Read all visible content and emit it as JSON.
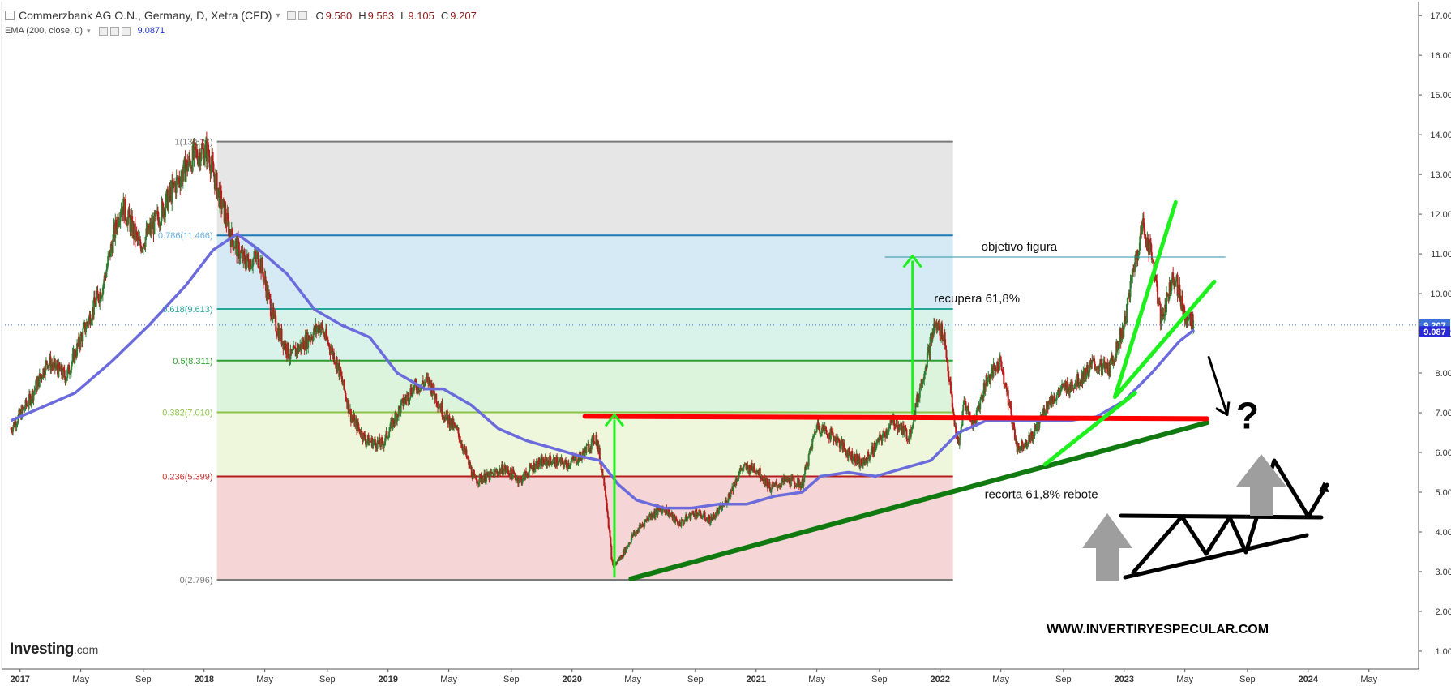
{
  "header": {
    "title": "Commerzbank AG O.N., Germany, D, Xetra (CFD)",
    "open_label": "O",
    "open": "9.580",
    "high_label": "H",
    "high": "9.583",
    "low_label": "L",
    "low": "9.105",
    "close_label": "C",
    "close": "9.207"
  },
  "indicator": {
    "label": "EMA (200, close, 0)",
    "value": "9.0871"
  },
  "logo": {
    "name": "Investing",
    "suffix": ".com"
  },
  "watermark": "WWW.INVERTIRYESPECULAR.COM",
  "colors": {
    "ema_line": "#6b6bdc",
    "candle_up": "#2e7d32",
    "candle_down": "#b71c1c",
    "last_price_tag": "#3a6fd8",
    "ema_tag": "#2a2ad8",
    "drawing_green": "#1ef01e",
    "drawing_dark_green": "#107a10",
    "drawing_red": "#ff0000"
  },
  "chart_data": {
    "type": "line",
    "y_axis": {
      "side": "right",
      "ticks": [
        1.0,
        2.0,
        3.0,
        4.0,
        5.0,
        6.0,
        7.0,
        8.0,
        9.0,
        10.0,
        11.0,
        12.0,
        13.0,
        14.0,
        15.0,
        16.0,
        17.0
      ],
      "tick_labels": [
        "1.000",
        "2.000",
        "3.000",
        "4.000",
        "5.000",
        "6.000",
        "7.000",
        "8.000",
        "9.000",
        "10.000",
        "11.000",
        "12.000",
        "13.000",
        "14.000",
        "15.000",
        "16.000",
        "17.000"
      ],
      "range": [
        0.55,
        17.35
      ]
    },
    "x_axis": {
      "range": [
        2016.9,
        2024.6
      ],
      "ticks": [
        2017.0,
        2017.33,
        2017.67,
        2018.0,
        2018.33,
        2018.67,
        2019.0,
        2019.33,
        2019.67,
        2020.0,
        2020.33,
        2020.67,
        2021.0,
        2021.33,
        2021.67,
        2022.0,
        2022.33,
        2022.67,
        2023.0,
        2023.33,
        2023.67,
        2024.0,
        2024.33
      ],
      "tick_labels": [
        "2017",
        "May",
        "Sep",
        "2018",
        "May",
        "Sep",
        "2019",
        "May",
        "Sep",
        "2020",
        "May",
        "Sep",
        "2021",
        "May",
        "Sep",
        "2022",
        "May",
        "Sep",
        "2023",
        "May",
        "Sep",
        "2024",
        "May"
      ],
      "bold_labels": [
        "2017",
        "2018",
        "2019",
        "2020",
        "2021",
        "2022",
        "2023",
        "2024"
      ]
    },
    "last_price": {
      "value": 9.207,
      "label": "9.207"
    },
    "ema_last": {
      "value": 9.087,
      "label": "9.087"
    },
    "price_series": {
      "name": "Commerzbank AG O.N.",
      "x": [
        2016.95,
        2017.05,
        2017.15,
        2017.25,
        2017.35,
        2017.45,
        2017.55,
        2017.65,
        2017.75,
        2017.85,
        2017.95,
        2018.02,
        2018.08,
        2018.15,
        2018.22,
        2018.3,
        2018.38,
        2018.47,
        2018.55,
        2018.63,
        2018.72,
        2018.8,
        2018.88,
        2018.97,
        2019.05,
        2019.13,
        2019.22,
        2019.3,
        2019.38,
        2019.47,
        2019.55,
        2019.63,
        2019.72,
        2019.8,
        2019.88,
        2019.97,
        2020.05,
        2020.13,
        2020.18,
        2020.22,
        2020.27,
        2020.33,
        2020.42,
        2020.5,
        2020.58,
        2020.67,
        2020.75,
        2020.83,
        2020.92,
        2021.0,
        2021.08,
        2021.17,
        2021.25,
        2021.33,
        2021.42,
        2021.5,
        2021.58,
        2021.67,
        2021.75,
        2021.83,
        2021.9,
        2021.97,
        2022.02,
        2022.07,
        2022.1,
        2022.13,
        2022.18,
        2022.25,
        2022.33,
        2022.42,
        2022.5,
        2022.58,
        2022.67,
        2022.75,
        2022.83,
        2022.92,
        2023.0,
        2023.05,
        2023.1,
        2023.15,
        2023.2,
        2023.27,
        2023.33,
        2023.38
      ],
      "close": [
        6.6,
        7.3,
        8.3,
        7.9,
        9.1,
        10.2,
        12.3,
        11.2,
        11.9,
        12.8,
        13.5,
        13.6,
        12.5,
        11.4,
        10.8,
        10.9,
        9.3,
        8.4,
        8.8,
        9.2,
        8.3,
        6.9,
        6.3,
        6.2,
        7.0,
        7.6,
        7.8,
        7.0,
        6.5,
        5.3,
        5.4,
        5.6,
        5.3,
        5.7,
        5.8,
        5.7,
        5.9,
        6.4,
        5.1,
        3.1,
        3.4,
        3.9,
        4.4,
        4.6,
        4.2,
        4.5,
        4.3,
        4.7,
        5.6,
        5.6,
        5.1,
        5.3,
        5.2,
        6.7,
        6.4,
        6.0,
        5.7,
        6.3,
        6.8,
        6.4,
        7.8,
        9.2,
        9.0,
        7.0,
        6.1,
        7.3,
        6.7,
        7.8,
        8.3,
        6.1,
        6.4,
        7.2,
        7.6,
        7.8,
        8.2,
        8.1,
        9.2,
        10.6,
        11.7,
        11.0,
        9.3,
        10.5,
        9.5,
        9.207
      ]
    },
    "ema_series": {
      "name": "EMA (200, close, 0)",
      "x": [
        2016.95,
        2017.1,
        2017.3,
        2017.5,
        2017.7,
        2017.9,
        2018.05,
        2018.18,
        2018.3,
        2018.45,
        2018.6,
        2018.75,
        2018.9,
        2019.05,
        2019.2,
        2019.3,
        2019.45,
        2019.6,
        2019.75,
        2019.9,
        2020.05,
        2020.15,
        2020.25,
        2020.35,
        2020.5,
        2020.65,
        2020.8,
        2020.95,
        2021.1,
        2021.25,
        2021.35,
        2021.5,
        2021.65,
        2021.8,
        2021.95,
        2022.1,
        2022.25,
        2022.4,
        2022.55,
        2022.7,
        2022.85,
        2023.0,
        2023.15,
        2023.3,
        2023.38
      ],
      "values": [
        6.8,
        7.1,
        7.5,
        8.3,
        9.2,
        10.2,
        11.1,
        11.5,
        11.1,
        10.5,
        9.6,
        9.2,
        8.9,
        8.0,
        7.6,
        7.6,
        7.2,
        6.6,
        6.3,
        6.1,
        5.9,
        5.8,
        5.2,
        4.8,
        4.6,
        4.6,
        4.7,
        4.7,
        4.9,
        5.0,
        5.4,
        5.5,
        5.4,
        5.6,
        5.8,
        6.5,
        6.8,
        6.8,
        6.8,
        6.8,
        6.9,
        7.3,
        8.0,
        8.8,
        9.087
      ]
    },
    "fibonacci": {
      "x_start": 2018.07,
      "x_end": 2022.07,
      "levels": [
        {
          "ratio": "1",
          "price": 13.827,
          "label": "1(13.827)",
          "line_color": "#7a7a7a",
          "label_color": "#7a7a7a",
          "fill_to_next": "#e6e6e6"
        },
        {
          "ratio": "0.786",
          "price": 11.466,
          "label": "0.786(11.466)",
          "line_color": "#1f77b4",
          "label_color": "#6ab0de",
          "fill_to_next": "#d5eaf5"
        },
        {
          "ratio": "0.618",
          "price": 9.613,
          "label": "0.618(9.613)",
          "line_color": "#26a69a",
          "label_color": "#26a69a",
          "fill_to_next": "#d9f3ea"
        },
        {
          "ratio": "0.5",
          "price": 8.311,
          "label": "0.5(8.311)",
          "line_color": "#2e9e2e",
          "label_color": "#2e9e2e",
          "fill_to_next": "#dcf3dc"
        },
        {
          "ratio": "0.382",
          "price": 7.01,
          "label": "0.382(7.010)",
          "line_color": "#8bc34a",
          "label_color": "#8bc34a",
          "fill_to_next": "#eef6dc"
        },
        {
          "ratio": "0.236",
          "price": 5.399,
          "label": "0.236(5.399)",
          "line_color": "#b71c1c",
          "label_color": "#d32f2f",
          "fill_to_next": "#f5d5d5"
        },
        {
          "ratio": "0",
          "price": 2.796,
          "label": "0(2.796)",
          "line_color": "#7a7a7a",
          "label_color": "#7a7a7a",
          "fill_to_next": null
        }
      ]
    },
    "annotations": {
      "objetivo": {
        "text": "objetivo figura",
        "x_text": 2022.43,
        "y_text": 11.08,
        "line_x": [
          2021.7,
          2023.55
        ],
        "line_y": 10.92
      },
      "recupera": {
        "text": "recupera 61,8%",
        "x_text": 2022.2,
        "y_text": 9.78
      },
      "recorta": {
        "text": "recorta 61,8% rebote",
        "x_text": 2022.55,
        "y_text": 4.85
      },
      "red_support": {
        "x": [
          2020.07,
          2023.45
        ],
        "y": [
          6.91,
          6.85
        ]
      },
      "trendline_long": {
        "x": [
          2020.32,
          2023.45
        ],
        "y": [
          2.82,
          6.75
        ]
      },
      "trendline_short": {
        "x": [
          2022.57,
          2023.06
        ],
        "y": [
          5.7,
          7.5
        ]
      },
      "green_fan_steep": {
        "x": [
          2022.95,
          2023.28
        ],
        "y": [
          7.4,
          12.3
        ]
      },
      "green_fan_shallow": {
        "x": [
          2022.95,
          2023.49
        ],
        "y": [
          7.4,
          10.3
        ]
      },
      "arrow_up_2020": {
        "x": 2020.23,
        "y_from": 2.85,
        "y_to": 6.95
      },
      "arrow_up_2021": {
        "x": 2021.85,
        "y_from": 6.95,
        "y_to": 10.95
      },
      "arrow_down": {
        "from": [
          2023.46,
          8.4
        ],
        "to": [
          2023.56,
          6.95
        ]
      },
      "question_mark": {
        "text": "?",
        "x": 2023.67,
        "y": 6.6
      }
    }
  }
}
